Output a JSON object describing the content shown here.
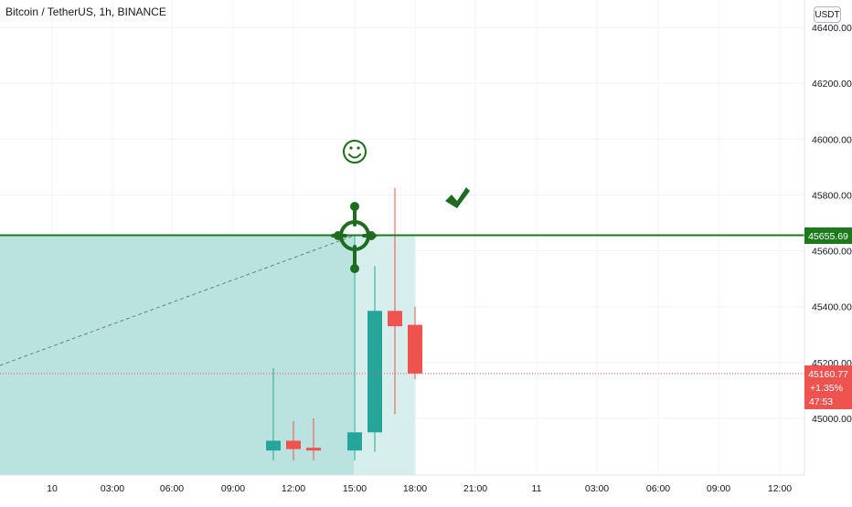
{
  "header": {
    "symbol": "Bitcoin / TetherUS, 1h, BINANCE",
    "currency": "USDT"
  },
  "price_axis": {
    "labels": [
      "46400.00",
      "46200.00",
      "46000.00",
      "45800.00",
      "45600.00",
      "45400.00",
      "45200.00",
      "45000.00"
    ],
    "current_price": "45160.77",
    "change": "+1.35%",
    "countdown": "47:53",
    "target_price": "45655.69"
  },
  "time_axis": {
    "labels": [
      "10",
      "03:00",
      "06:00",
      "09:00",
      "12:00",
      "15:00",
      "18:00",
      "21:00",
      "11",
      "03:00",
      "06:00",
      "09:00",
      "12:00"
    ]
  },
  "colors": {
    "up": "#26a69a",
    "down": "#ef5350",
    "target_line": "#1b7a1b",
    "zone_fill": "#b2dfdb",
    "icon_green": "#1e6b21"
  },
  "icons": [
    "smiley-icon",
    "target-crosshair-icon",
    "checkmark-icon"
  ],
  "chart_data": {
    "type": "candlestick",
    "title": "Bitcoin / TetherUS, 1h, BINANCE",
    "x_ticks": [
      "10",
      "03:00",
      "06:00",
      "09:00",
      "12:00",
      "15:00",
      "18:00",
      "21:00",
      "11",
      "03:00",
      "06:00",
      "09:00",
      "12:00"
    ],
    "ylim": [
      44860,
      46430
    ],
    "grid": true,
    "candles": [
      {
        "time": "11:00",
        "open": 44885,
        "high": 45180,
        "low": 44850,
        "close": 44920
      },
      {
        "time": "12:00",
        "open": 44920,
        "high": 44990,
        "low": 44850,
        "close": 44890
      },
      {
        "time": "13:00",
        "open": 44895,
        "high": 45000,
        "low": 44850,
        "close": 44885
      },
      {
        "time": "15:00",
        "open": 44885,
        "high": 45655,
        "low": 44850,
        "close": 44950
      },
      {
        "time": "16:00",
        "open": 44950,
        "high": 45545,
        "low": 44880,
        "close": 45385
      },
      {
        "time": "17:00",
        "open": 45385,
        "high": 45825,
        "low": 45015,
        "close": 45330
      },
      {
        "time": "18:00",
        "open": 45335,
        "high": 45400,
        "low": 45140,
        "close": 45160.77
      }
    ],
    "horizontal_lines": [
      {
        "label": "45655.69",
        "value": 45655.69
      },
      {
        "label": "45160.77",
        "value": 45160.77
      }
    ]
  }
}
